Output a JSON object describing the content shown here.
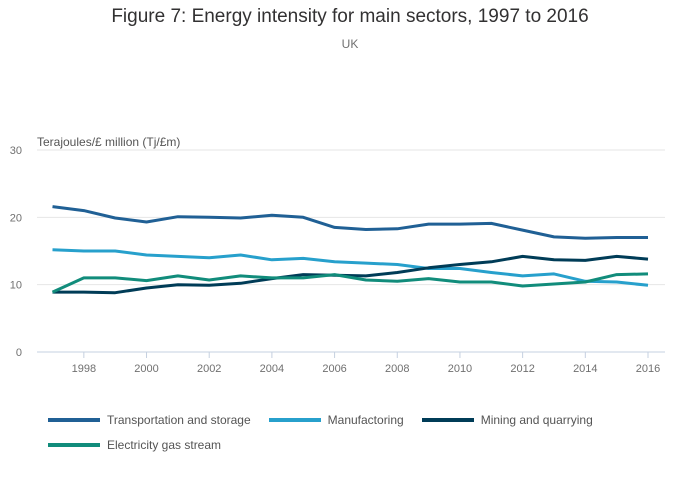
{
  "chart_data": {
    "type": "line",
    "title": "Figure 7: Energy intensity for main sectors, 1997 to 2016",
    "subtitle": "UK",
    "xlabel": "",
    "ylabel": "Terajoules/£ million (Tj/£m)",
    "x": [
      1997,
      1998,
      1999,
      2000,
      2001,
      2002,
      2003,
      2004,
      2005,
      2006,
      2007,
      2008,
      2009,
      2010,
      2011,
      2012,
      2013,
      2014,
      2015,
      2016
    ],
    "xlim": [
      1997,
      2016
    ],
    "ylim": [
      0,
      30
    ],
    "xticks": [
      "1998",
      "2000",
      "2002",
      "2004",
      "2006",
      "2008",
      "2010",
      "2012",
      "2014",
      "2016"
    ],
    "xtick_values": [
      1998,
      2000,
      2002,
      2004,
      2006,
      2008,
      2010,
      2012,
      2014,
      2016
    ],
    "yticks": [
      0,
      10,
      20,
      30
    ],
    "grid": true,
    "legend_position": "bottom",
    "series": [
      {
        "name": "Transportation and storage",
        "color": "#206095",
        "values": [
          21.6,
          21.0,
          19.9,
          19.3,
          20.1,
          20.0,
          19.9,
          20.3,
          20.0,
          18.5,
          18.2,
          18.3,
          19.0,
          19.0,
          19.1,
          18.1,
          17.1,
          16.9,
          17.0,
          17.0
        ]
      },
      {
        "name": "Manufactoring",
        "color": "#27a0cc",
        "values": [
          15.2,
          15.0,
          15.0,
          14.4,
          14.2,
          14.0,
          14.4,
          13.7,
          13.9,
          13.4,
          13.2,
          13.0,
          12.4,
          12.4,
          11.8,
          11.3,
          11.6,
          10.5,
          10.4,
          9.9
        ]
      },
      {
        "name": "Mining and quarrying",
        "color": "#003c57",
        "values": [
          8.9,
          8.9,
          8.8,
          9.5,
          10.0,
          9.9,
          10.2,
          10.9,
          11.5,
          11.4,
          11.3,
          11.8,
          12.5,
          13.0,
          13.4,
          14.2,
          13.7,
          13.6,
          14.2,
          13.8
        ]
      },
      {
        "name": "Electricity gas stream",
        "color": "#118c7b",
        "values": [
          8.9,
          11.0,
          11.0,
          10.6,
          11.3,
          10.7,
          11.3,
          11.0,
          11.0,
          11.5,
          10.7,
          10.5,
          10.9,
          10.4,
          10.4,
          9.8,
          10.1,
          10.4,
          11.5,
          11.6
        ]
      }
    ]
  }
}
